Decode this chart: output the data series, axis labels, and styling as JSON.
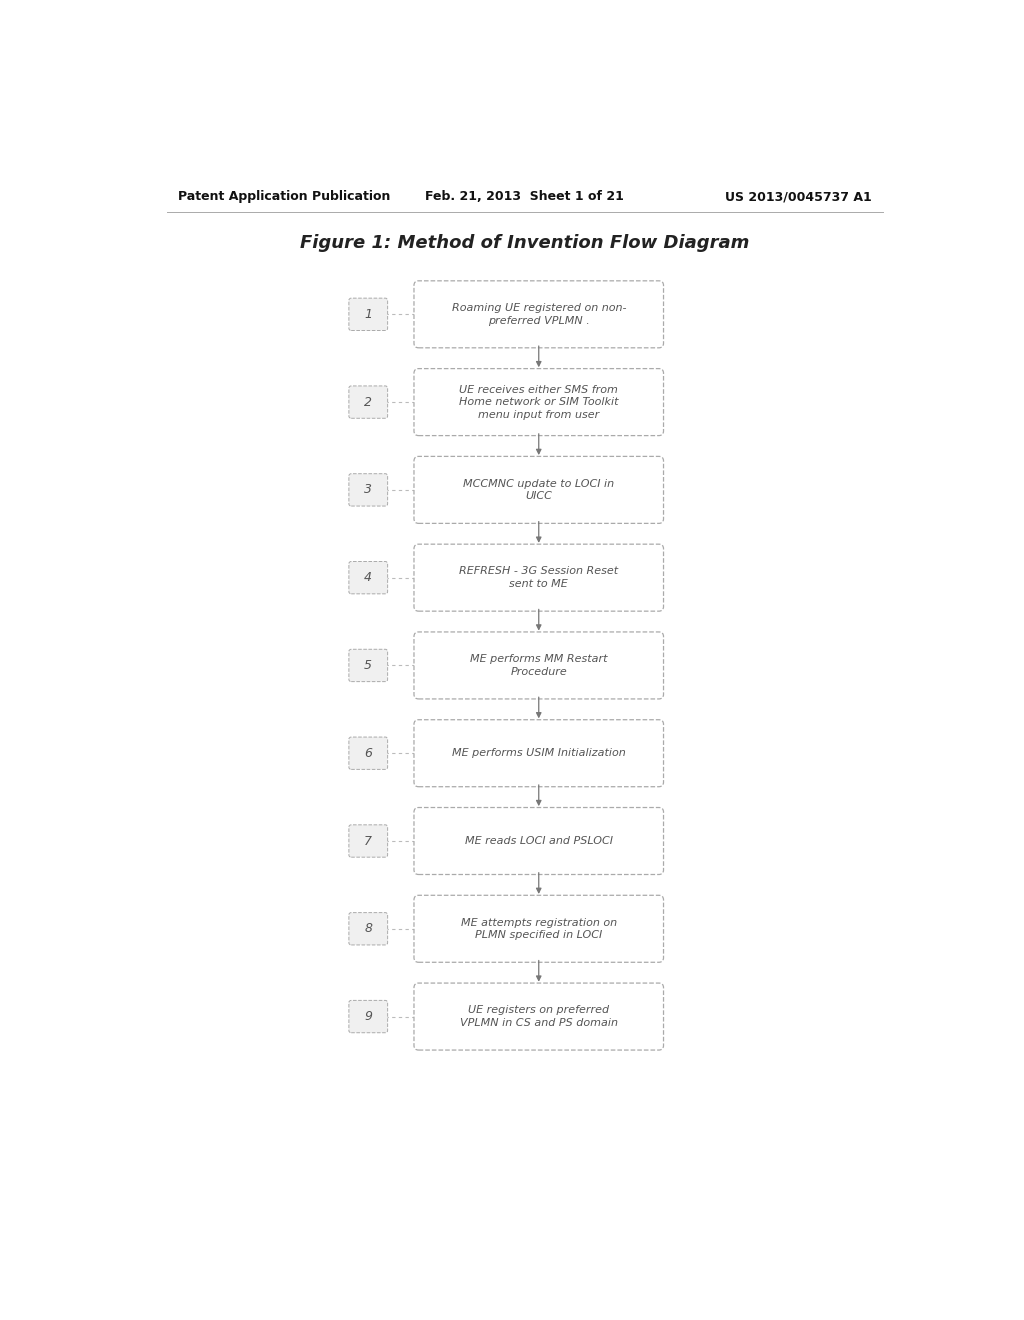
{
  "page_header_left": "Patent Application Publication",
  "page_header_center": "Feb. 21, 2013  Sheet 1 of 21",
  "page_header_right": "US 2013/0045737 A1",
  "figure_title": "Figure 1: Method of Invention Flow Diagram",
  "steps": [
    {
      "num": "1",
      "text": "Roaming UE registered on non-\npreferred VPLMN ."
    },
    {
      "num": "2",
      "text": "UE receives either SMS from\nHome network or SIM Toolkit\nmenu input from user"
    },
    {
      "num": "3",
      "text": "MCCMNC update to LOCI in\nUICC"
    },
    {
      "num": "4",
      "text": "REFRESH - 3G Session Reset\nsent to ME"
    },
    {
      "num": "5",
      "text": "ME performs MM Restart\nProcedure"
    },
    {
      "num": "6",
      "text": "ME performs USIM Initialization"
    },
    {
      "num": "7",
      "text": "ME reads LOCI and PSLOCI"
    },
    {
      "num": "8",
      "text": "ME attempts registration on\nPLMN specified in LOCI"
    },
    {
      "num": "9",
      "text": "UE registers on preferred\nVPLMN in CS and PS domain"
    }
  ],
  "bg_color": "#ffffff",
  "box_facecolor": "#ffffff",
  "box_edgecolor": "#aaaaaa",
  "text_color": "#555555",
  "header_color": "#111111",
  "arrow_color": "#777777",
  "num_box_facecolor": "#f0f0f0",
  "num_box_edgecolor": "#aaaaaa",
  "line_color": "#bbbbbb",
  "title_color": "#222222"
}
